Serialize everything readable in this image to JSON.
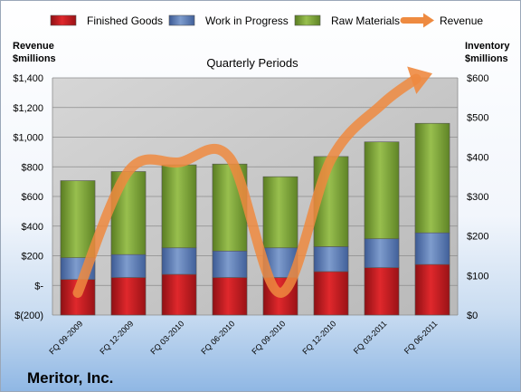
{
  "company": "Meritor, Inc.",
  "chart_data": {
    "type": "bar",
    "subtype": "stacked bar with line overlay, dual axis",
    "title": "Quarterly Periods",
    "left_axis_label": [
      "Revenue",
      "$millions"
    ],
    "right_axis_label": [
      "Inventory",
      "$millions"
    ],
    "categories": [
      "FQ 09-2009",
      "FQ 12-2009",
      "FQ 03-2010",
      "FQ 06-2010",
      "FQ 09-2010",
      "FQ 12-2010",
      "FQ 03-2011",
      "FQ 06-2011"
    ],
    "left_axis": {
      "min": -200,
      "max": 1400,
      "step": 200,
      "tick_labels": [
        "$(200)",
        "$-",
        "$200",
        "$400",
        "$600",
        "$800",
        "$1,000",
        "$1,200",
        "$1,400"
      ]
    },
    "right_axis": {
      "min": 0,
      "max": 600,
      "step": 100,
      "tick_labels": [
        "$0",
        "$100",
        "$200",
        "$300",
        "$400",
        "$500",
        "$600"
      ]
    },
    "grid": true,
    "legend_position": "top",
    "series": [
      {
        "name": "Finished Goods",
        "kind": "bar",
        "axis": "right",
        "color": "#c0181c",
        "values": [
          90,
          95,
          103,
          95,
          95,
          110,
          120,
          128
        ]
      },
      {
        "name": "Work in Progress",
        "kind": "bar",
        "axis": "right",
        "color": "#5878b4",
        "values": [
          55,
          58,
          67,
          67,
          75,
          63,
          73,
          80
        ]
      },
      {
        "name": "Raw Materials",
        "kind": "bar",
        "axis": "right",
        "color": "#7aa035",
        "values": [
          195,
          210,
          210,
          220,
          180,
          228,
          245,
          277
        ]
      },
      {
        "name": "Revenue",
        "kind": "line",
        "axis": "left",
        "color": "#ee8a40",
        "values": [
          -50,
          770,
          830,
          860,
          -50,
          850,
          1220,
          1430
        ]
      }
    ]
  }
}
